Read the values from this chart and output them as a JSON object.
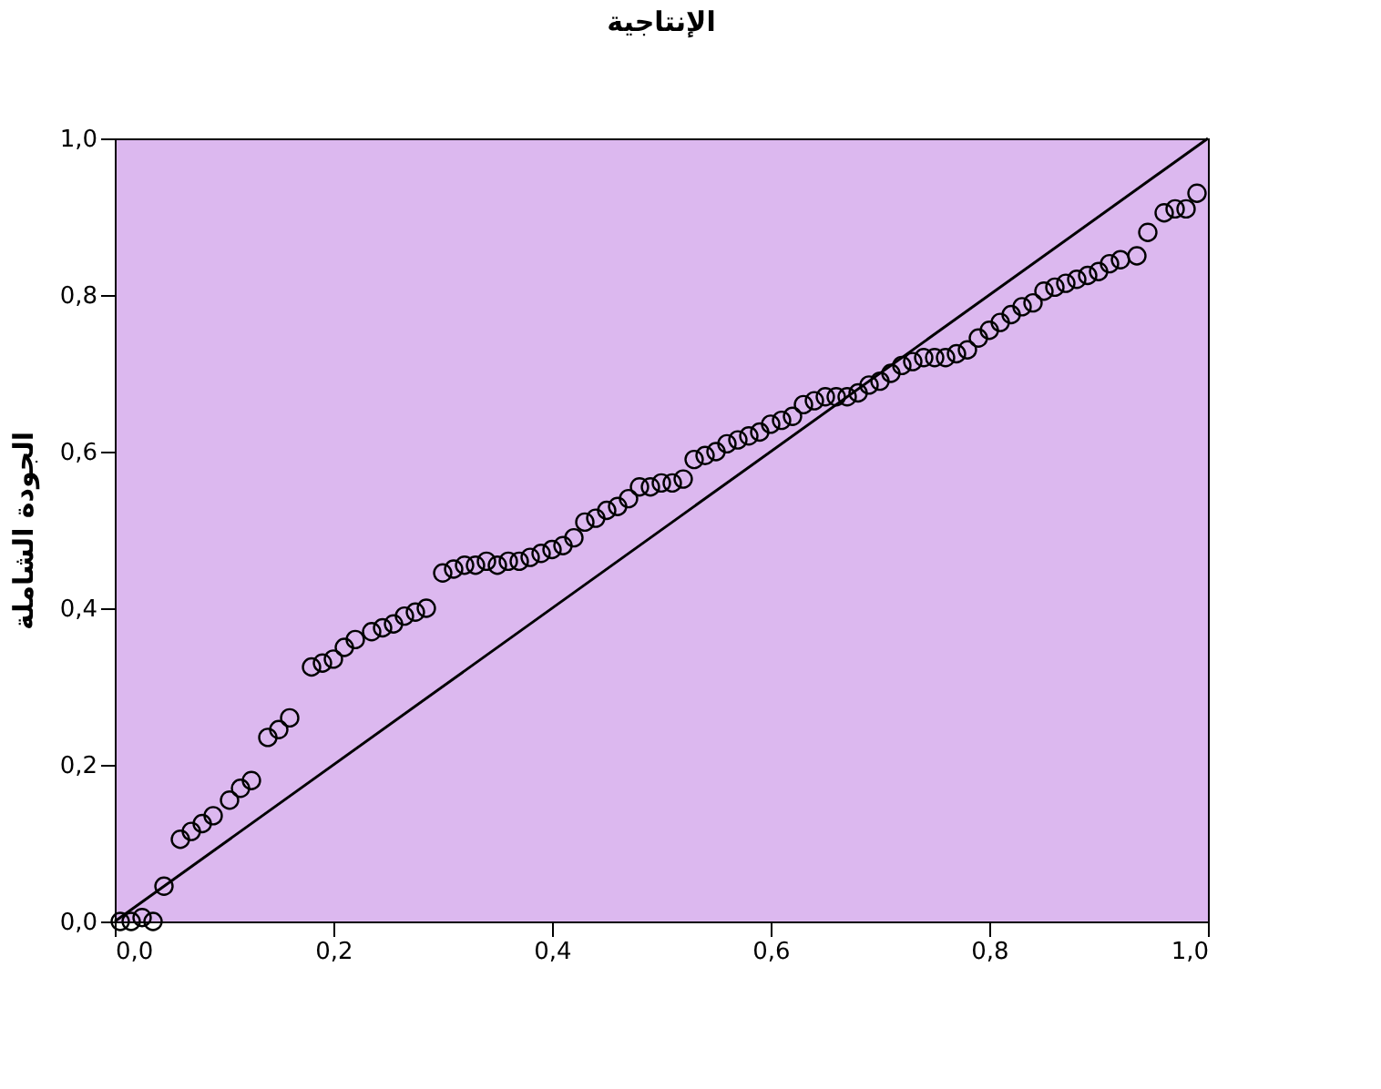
{
  "chart_data": {
    "type": "scatter",
    "title": "الإنتاجية",
    "ylabel": "الجودة الشاملة",
    "xlim": [
      0,
      1
    ],
    "ylim": [
      0,
      1
    ],
    "xticks": [
      {
        "value": 0,
        "label": "0,0"
      },
      {
        "value": 0.2,
        "label": "0,2"
      },
      {
        "value": 0.4,
        "label": "0,4"
      },
      {
        "value": 0.6,
        "label": "0,6"
      },
      {
        "value": 0.8,
        "label": "0,8"
      },
      {
        "value": 1,
        "label": "1,0"
      }
    ],
    "yticks": [
      {
        "value": 0,
        "label": "0,0"
      },
      {
        "value": 0.2,
        "label": "0,2"
      },
      {
        "value": 0.4,
        "label": "0,4"
      },
      {
        "value": 0.6,
        "label": "0,6"
      },
      {
        "value": 0.8,
        "label": "0,8"
      },
      {
        "value": 1,
        "label": "1,0"
      }
    ],
    "grid": false,
    "series": [
      {
        "color": "#000000",
        "marker": "circle",
        "x": [
          0.005,
          0.015,
          0.025,
          0.035,
          0.045,
          0.06,
          0.07,
          0.08,
          0.09,
          0.105,
          0.115,
          0.125,
          0.14,
          0.15,
          0.16,
          0.18,
          0.19,
          0.2,
          0.21,
          0.22,
          0.235,
          0.245,
          0.255,
          0.265,
          0.275,
          0.285,
          0.3,
          0.31,
          0.32,
          0.33,
          0.34,
          0.35,
          0.36,
          0.37,
          0.38,
          0.39,
          0.4,
          0.41,
          0.42,
          0.43,
          0.44,
          0.45,
          0.46,
          0.47,
          0.48,
          0.49,
          0.5,
          0.51,
          0.52,
          0.53,
          0.54,
          0.55,
          0.56,
          0.57,
          0.58,
          0.59,
          0.6,
          0.61,
          0.62,
          0.63,
          0.64,
          0.65,
          0.66,
          0.67,
          0.68,
          0.69,
          0.7,
          0.71,
          0.72,
          0.73,
          0.74,
          0.75,
          0.76,
          0.77,
          0.78,
          0.79,
          0.8,
          0.81,
          0.82,
          0.83,
          0.84,
          0.85,
          0.86,
          0.87,
          0.88,
          0.89,
          0.9,
          0.91,
          0.92,
          0.935,
          0.945,
          0.96,
          0.97,
          0.98,
          0.99
        ],
        "values": [
          0.0,
          0.0,
          0.005,
          0.0,
          0.045,
          0.105,
          0.115,
          0.125,
          0.135,
          0.155,
          0.17,
          0.18,
          0.235,
          0.245,
          0.26,
          0.325,
          0.33,
          0.335,
          0.35,
          0.36,
          0.37,
          0.375,
          0.38,
          0.39,
          0.395,
          0.4,
          0.445,
          0.45,
          0.455,
          0.455,
          0.46,
          0.455,
          0.46,
          0.46,
          0.465,
          0.47,
          0.475,
          0.48,
          0.49,
          0.51,
          0.515,
          0.525,
          0.53,
          0.54,
          0.555,
          0.555,
          0.56,
          0.56,
          0.565,
          0.59,
          0.595,
          0.6,
          0.61,
          0.615,
          0.62,
          0.625,
          0.635,
          0.64,
          0.645,
          0.66,
          0.665,
          0.67,
          0.67,
          0.67,
          0.675,
          0.685,
          0.69,
          0.7,
          0.71,
          0.715,
          0.72,
          0.72,
          0.72,
          0.725,
          0.73,
          0.745,
          0.755,
          0.765,
          0.775,
          0.785,
          0.79,
          0.805,
          0.81,
          0.815,
          0.82,
          0.825,
          0.83,
          0.84,
          0.845,
          0.85,
          0.88,
          0.905,
          0.91,
          0.91,
          0.93
        ]
      },
      {
        "type": "line",
        "color": "#000000",
        "x": [
          0,
          1
        ],
        "values": [
          0,
          1
        ],
        "line_style": "solid",
        "marker": "none"
      }
    ]
  }
}
